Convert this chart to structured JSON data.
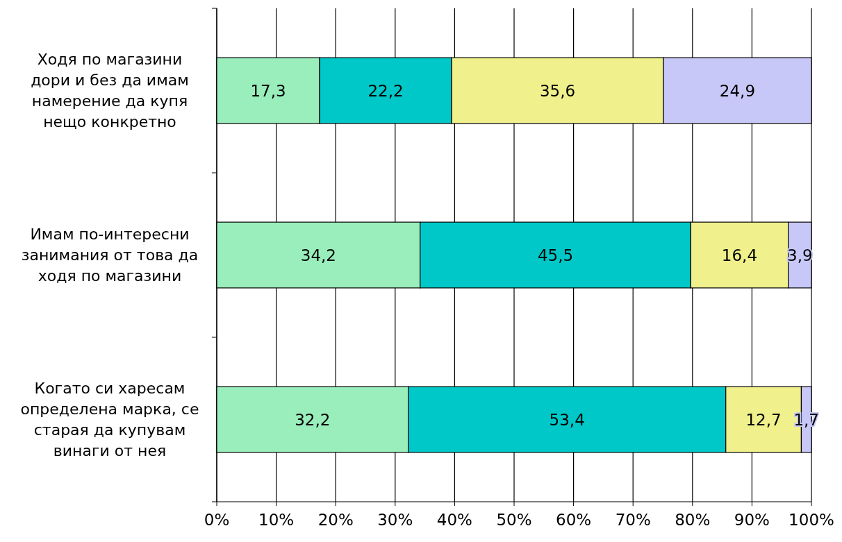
{
  "chart_data": {
    "type": "bar",
    "orientation": "horizontal",
    "stacked": true,
    "grid": "x",
    "categories": [
      "Ходя по магазини дори и без да имам намерение да купя нещо конкретно",
      "Имам по-интересни занимания от това да ходя по магазини",
      "Когато си харесам определена марка, се старая да купувам винаги от нея"
    ],
    "series": [
      {
        "color": "#99eebb",
        "values": [
          17.3,
          34.2,
          32.2
        ],
        "value_labels": [
          "17,3",
          "34,2",
          "32,2"
        ]
      },
      {
        "color": "#00c8c8",
        "values": [
          22.2,
          45.5,
          53.4
        ],
        "value_labels": [
          "22,2",
          "45,5",
          "53,4"
        ]
      },
      {
        "color": "#f0f08c",
        "values": [
          35.6,
          16.4,
          12.7
        ],
        "value_labels": [
          "35,6",
          "16,4",
          "12,7"
        ]
      },
      {
        "color": "#c8c8f8",
        "values": [
          24.9,
          3.9,
          1.7
        ],
        "value_labels": [
          "24,9",
          "3,9",
          "1,7"
        ]
      }
    ],
    "xlim": [
      0,
      100
    ],
    "xticks": [
      {
        "value": 0,
        "label": "0%"
      },
      {
        "value": 10,
        "label": "10%"
      },
      {
        "value": 20,
        "label": "20%"
      },
      {
        "value": 30,
        "label": "30%"
      },
      {
        "value": 40,
        "label": "40%"
      },
      {
        "value": 50,
        "label": "50%"
      },
      {
        "value": 60,
        "label": "60%"
      },
      {
        "value": 70,
        "label": "70%"
      },
      {
        "value": 80,
        "label": "80%"
      },
      {
        "value": 90,
        "label": "90%"
      },
      {
        "value": 100,
        "label": "100%"
      }
    ]
  }
}
